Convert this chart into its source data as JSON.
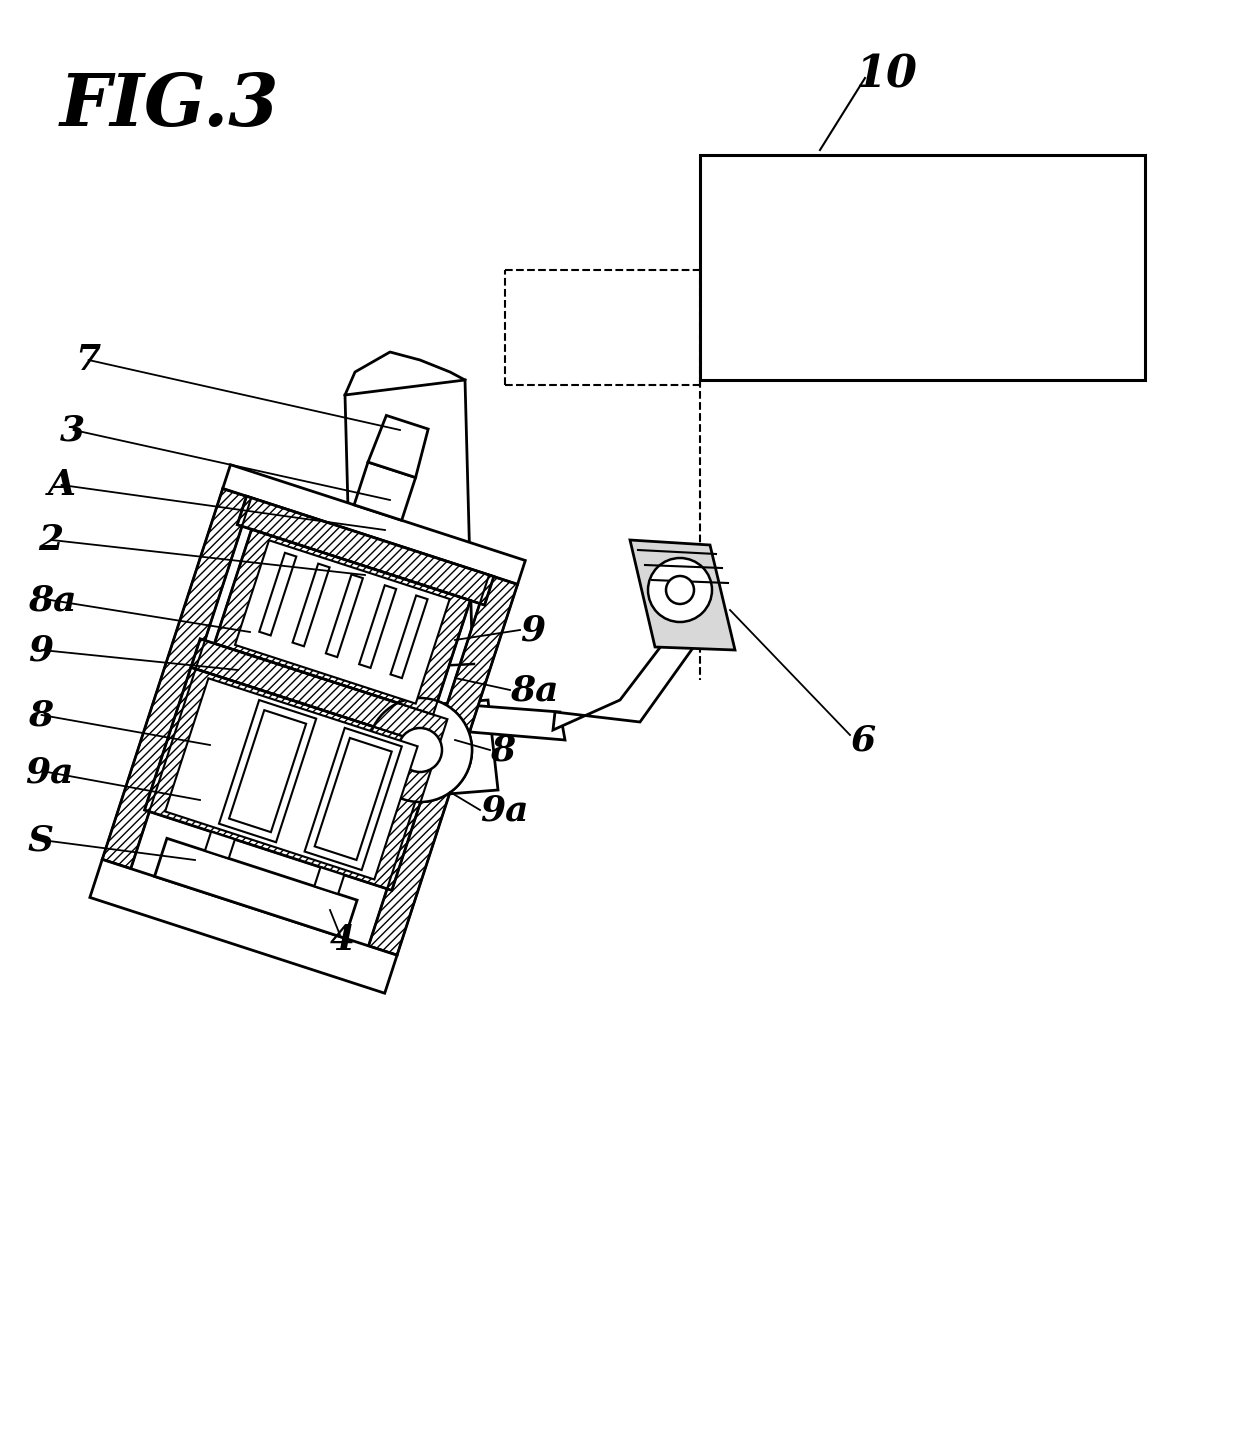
{
  "title": "FIG.3",
  "bg_color": "#ffffff",
  "lc": "#000000",
  "label_10": "10",
  "label_7": "7",
  "label_3": "3",
  "label_A": "A",
  "label_2": "2",
  "label_8a_L": "8a",
  "label_9_L": "9",
  "label_8_L": "8",
  "label_9a_L": "9a",
  "label_S": "S",
  "label_9_R": "9",
  "label_8a_R": "8a",
  "label_6": "6",
  "label_8_R": "8",
  "label_9a_R": "9a",
  "label_4": "4"
}
